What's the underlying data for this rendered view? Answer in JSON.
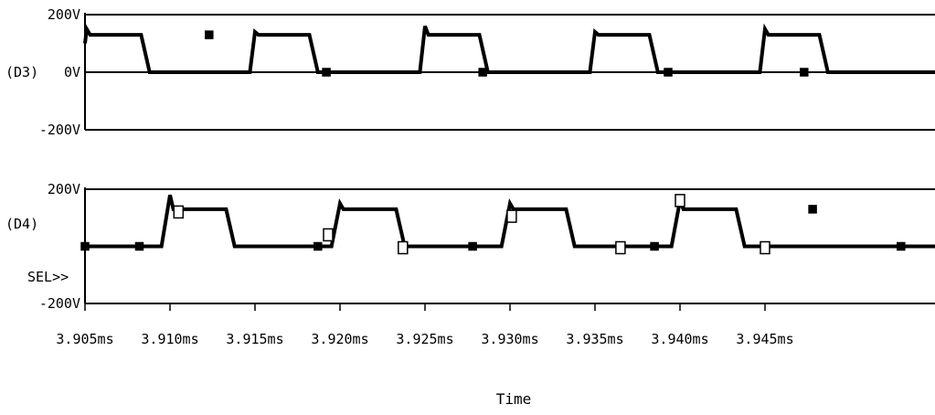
{
  "colors": {
    "trace": "#000000",
    "axis": "#000000",
    "gridline": "#000000"
  },
  "chart_data": [
    {
      "type": "line",
      "signal_label": "(D3)",
      "y_ticks": [
        {
          "value": 200,
          "label": "200V"
        },
        {
          "value": 0,
          "label": "0V"
        },
        {
          "value": -200,
          "label": "-200V"
        }
      ],
      "ylim": [
        -200,
        200
      ],
      "xlim": [
        3.905,
        3.955
      ],
      "series": [
        {
          "x": [
            3.905,
            3.9051,
            3.9053,
            3.9083,
            3.9088,
            3.9145,
            3.9147,
            3.915,
            3.9152,
            3.9182,
            3.9187,
            3.9245,
            3.9247,
            3.925,
            3.9252,
            3.9282,
            3.9287,
            3.9345,
            3.9347,
            3.935,
            3.9352,
            3.9382,
            3.9387,
            3.9445,
            3.9447,
            3.945,
            3.9452,
            3.9482,
            3.9487,
            3.955
          ],
          "y": [
            100,
            150,
            130,
            130,
            0,
            0,
            0,
            140,
            130,
            130,
            0,
            0,
            0,
            160,
            130,
            130,
            0,
            0,
            0,
            140,
            130,
            130,
            0,
            0,
            0,
            150,
            130,
            130,
            0,
            0
          ]
        }
      ],
      "markers": {
        "x": [
          3.9123,
          3.9192,
          3.9284,
          3.9393,
          3.9473
        ],
        "y": [
          130,
          0,
          0,
          0,
          0
        ],
        "style": "filled"
      }
    },
    {
      "type": "line",
      "signal_label": "(D4)",
      "sel_label": "SEL>>",
      "y_ticks": [
        {
          "value": 200,
          "label": "200V"
        },
        {
          "value": -200,
          "label": "-200V"
        }
      ],
      "ylim": [
        -200,
        200
      ],
      "xlim": [
        3.905,
        3.955
      ],
      "series": [
        {
          "x": [
            3.905,
            3.9093,
            3.9095,
            3.91,
            3.9102,
            3.9133,
            3.9138,
            3.9193,
            3.9195,
            3.92,
            3.9202,
            3.9233,
            3.9238,
            3.9293,
            3.9295,
            3.93,
            3.9302,
            3.9333,
            3.9338,
            3.9393,
            3.9395,
            3.94,
            3.9402,
            3.9433,
            3.9438,
            3.955
          ],
          "y": [
            0,
            0,
            0,
            180,
            130,
            130,
            0,
            0,
            0,
            150,
            130,
            130,
            0,
            0,
            0,
            150,
            130,
            130,
            0,
            0,
            0,
            160,
            130,
            130,
            0,
            0
          ]
        }
      ],
      "open_markers": {
        "x": [
          3.9105,
          3.9193,
          3.9237,
          3.9301,
          3.9365,
          3.94,
          3.945
        ],
        "y": [
          125,
          45,
          0,
          110,
          0,
          165,
          0
        ]
      },
      "filled_markers": {
        "x": [
          3.905,
          3.9082,
          3.9187,
          3.9278,
          3.9385,
          3.9478,
          3.953
        ],
        "y": [
          0,
          0,
          0,
          0,
          0,
          130,
          0
        ]
      }
    }
  ],
  "x_axis": {
    "tick_labels": [
      "3.905ms",
      "3.910ms",
      "3.915ms",
      "3.920ms",
      "3.925ms",
      "3.930ms",
      "3.935ms",
      "3.940ms",
      "3.945ms"
    ],
    "tick_values": [
      3.905,
      3.91,
      3.915,
      3.92,
      3.925,
      3.93,
      3.935,
      3.94,
      3.945
    ],
    "title": "Time"
  }
}
